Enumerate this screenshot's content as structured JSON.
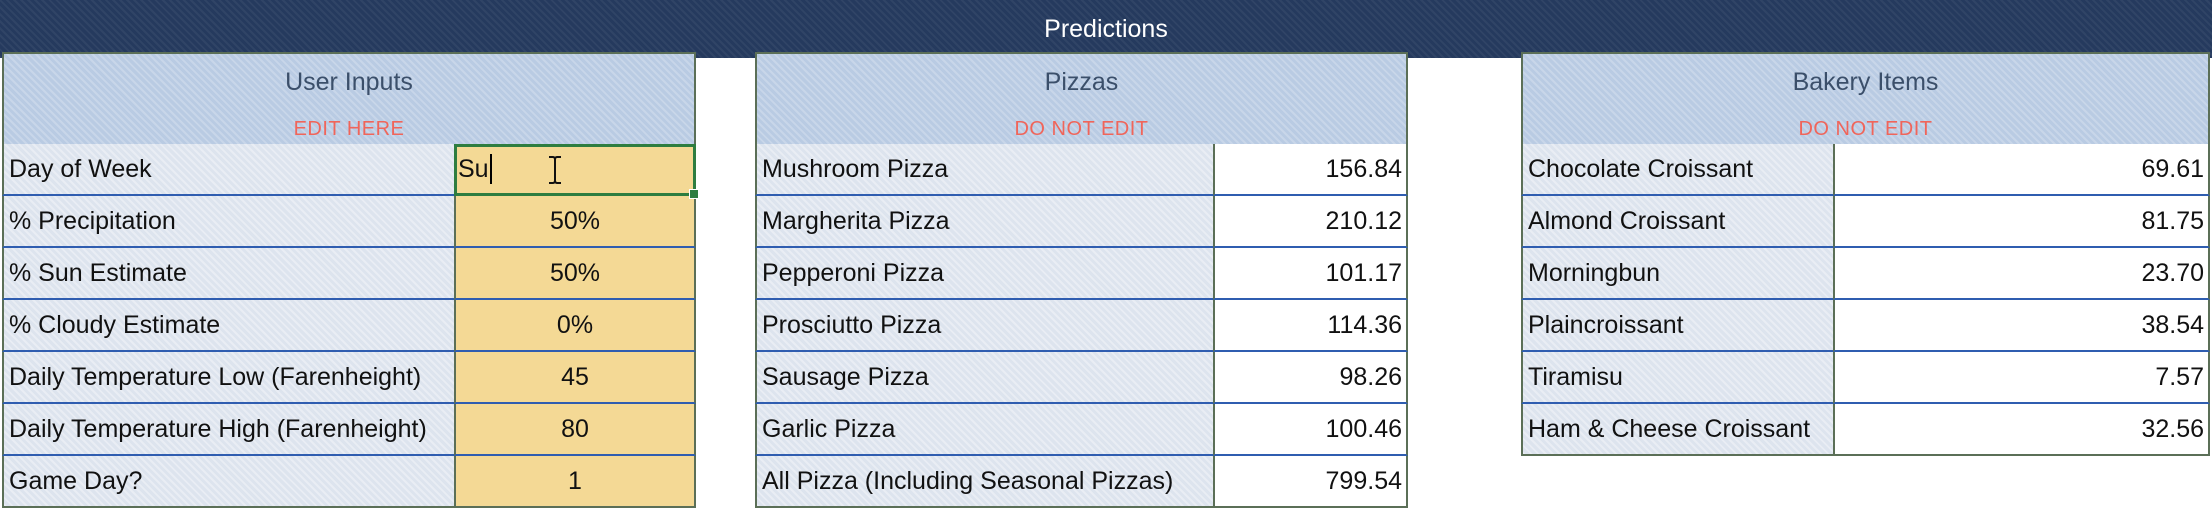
{
  "banner": {
    "title": "Predictions"
  },
  "user_inputs": {
    "title": "User Inputs",
    "subtitle": "EDIT HERE",
    "rows": [
      {
        "label": "Day of Week",
        "value": "Su"
      },
      {
        "label": "% Precipitation",
        "value": "50%"
      },
      {
        "label": "% Sun Estimate",
        "value": "50%"
      },
      {
        "label": "% Cloudy Estimate",
        "value": "0%"
      },
      {
        "label": "Daily Temperature Low (Farenheight)",
        "value": "45"
      },
      {
        "label": "Daily Temperature High (Farenheight)",
        "value": "80"
      },
      {
        "label": "Game Day?",
        "value": "1"
      }
    ]
  },
  "pizzas": {
    "title": "Pizzas",
    "subtitle": "DO NOT EDIT",
    "rows": [
      {
        "label": "Mushroom Pizza",
        "value": "156.84"
      },
      {
        "label": "Margherita Pizza",
        "value": "210.12"
      },
      {
        "label": "Pepperoni Pizza",
        "value": "101.17"
      },
      {
        "label": "Prosciutto Pizza",
        "value": "114.36"
      },
      {
        "label": "Sausage Pizza",
        "value": "98.26"
      },
      {
        "label": "Garlic Pizza",
        "value": "100.46"
      },
      {
        "label": "All Pizza (Including Seasonal Pizzas)",
        "value": "799.54"
      }
    ]
  },
  "bakery": {
    "title": "Bakery Items",
    "subtitle": "DO NOT EDIT",
    "rows": [
      {
        "label": "Chocolate Croissant",
        "value": "69.61"
      },
      {
        "label": "Almond Croissant",
        "value": "81.75"
      },
      {
        "label": "Morningbun",
        "value": "23.70"
      },
      {
        "label": "Plaincroissant",
        "value": "38.54"
      },
      {
        "label": "Tiramisu",
        "value": "7.57"
      },
      {
        "label": "Ham & Cheese Croissant",
        "value": "32.56"
      }
    ]
  },
  "colors": {
    "banner": "#253a5e",
    "header": "#b9cbe3",
    "input_fill": "#f4d995",
    "warning_text": "#f0655a",
    "active_border": "#2e7d40"
  }
}
